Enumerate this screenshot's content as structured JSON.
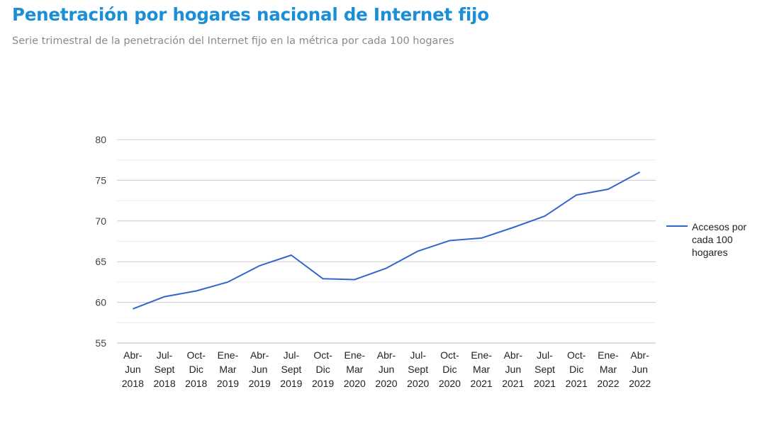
{
  "header": {
    "title": "Penetración por hogares nacional de Internet fijo",
    "subtitle": "Serie trimestral de la penetración del Internet fijo en la métrica por cada 100 hogares"
  },
  "chart_data": {
    "type": "line",
    "categories": [
      [
        "Abr-",
        "Jun",
        "2018"
      ],
      [
        "Jul-",
        "Sept",
        "2018"
      ],
      [
        "Oct-",
        "Dic",
        "2018"
      ],
      [
        "Ene-",
        "Mar",
        "2019"
      ],
      [
        "Abr-",
        "Jun",
        "2019"
      ],
      [
        "Jul-",
        "Sept",
        "2019"
      ],
      [
        "Oct-",
        "Dic",
        "2019"
      ],
      [
        "Ene-",
        "Mar",
        "2020"
      ],
      [
        "Abr-",
        "Jun",
        "2020"
      ],
      [
        "Jul-",
        "Sept",
        "2020"
      ],
      [
        "Oct-",
        "Dic",
        "2020"
      ],
      [
        "Ene-",
        "Mar",
        "2021"
      ],
      [
        "Abr-",
        "Jun",
        "2021"
      ],
      [
        "Jul-",
        "Sept",
        "2021"
      ],
      [
        "Oct-",
        "Dic",
        "2021"
      ],
      [
        "Ene-",
        "Mar",
        "2022"
      ],
      [
        "Abr-",
        "Jun",
        "2022"
      ]
    ],
    "series": [
      {
        "name": "Accesos por cada 100 hogares",
        "legend_lines": [
          "Accesos por",
          "cada 100",
          "hogares"
        ],
        "color": "#3366cc",
        "values": [
          59.2,
          60.7,
          61.4,
          62.5,
          64.5,
          65.8,
          62.9,
          62.8,
          64.2,
          66.3,
          67.6,
          67.9,
          69.2,
          70.6,
          73.2,
          73.9,
          76.0
        ]
      }
    ],
    "y_ticks": [
      55,
      60,
      65,
      70,
      75,
      80
    ],
    "ylim": [
      55,
      80
    ],
    "grid": true,
    "legend_position": "right"
  }
}
